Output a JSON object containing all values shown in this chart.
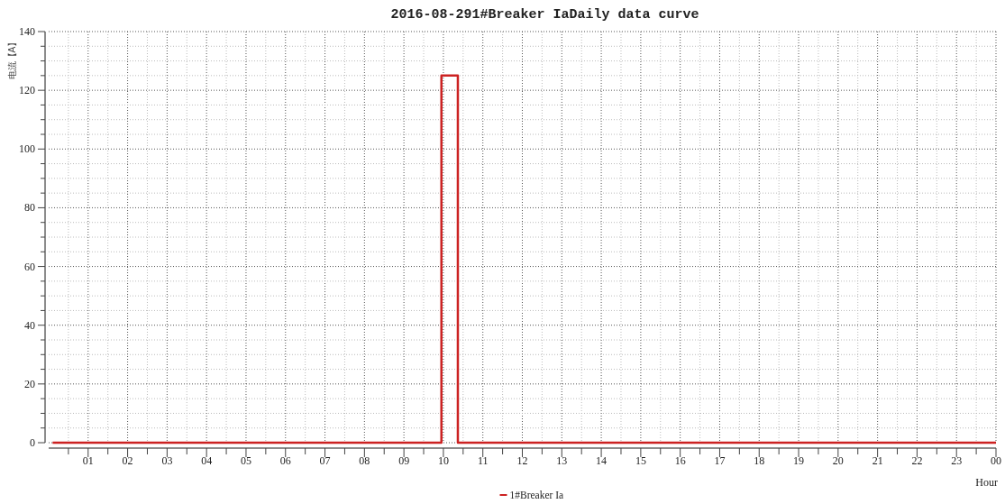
{
  "chart_data": {
    "type": "step",
    "title": "2016-08-291#Breaker IaDaily data curve",
    "xlabel": "Hour",
    "ylabel": "电流【A】",
    "series": [
      {
        "name": "1#Breaker Ia",
        "color": "#cc2222",
        "x": [
          "2016-08-29T00:06",
          "2016-08-29T09:57",
          "2016-08-29T10:22",
          "2016-08-30T00:00"
        ],
        "values": [
          0,
          125,
          0,
          0
        ]
      }
    ],
    "xlim": [
      "2016-08-29T00:00",
      "2016-08-30T00:00"
    ],
    "xticks": [
      {
        "value": "2016-08-29T00:30",
        "label": null
      },
      {
        "value": "2016-08-29T01:00",
        "label": "01"
      },
      {
        "value": "2016-08-29T01:30",
        "label": null
      },
      {
        "value": "2016-08-29T02:00",
        "label": "02"
      },
      {
        "value": "2016-08-29T02:30",
        "label": null
      },
      {
        "value": "2016-08-29T03:00",
        "label": "03"
      },
      {
        "value": "2016-08-29T03:30",
        "label": null
      },
      {
        "value": "2016-08-29T04:00",
        "label": "04"
      },
      {
        "value": "2016-08-29T04:30",
        "label": null
      },
      {
        "value": "2016-08-29T05:00",
        "label": "05"
      },
      {
        "value": "2016-08-29T05:30",
        "label": null
      },
      {
        "value": "2016-08-29T06:00",
        "label": "06"
      },
      {
        "value": "2016-08-29T06:30",
        "label": null
      },
      {
        "value": "2016-08-29T07:00",
        "label": "07"
      },
      {
        "value": "2016-08-29T07:30",
        "label": null
      },
      {
        "value": "2016-08-29T08:00",
        "label": "08"
      },
      {
        "value": "2016-08-29T08:30",
        "label": null
      },
      {
        "value": "2016-08-29T09:00",
        "label": "09"
      },
      {
        "value": "2016-08-29T09:30",
        "label": null
      },
      {
        "value": "2016-08-29T10:00",
        "label": "10"
      },
      {
        "value": "2016-08-29T10:30",
        "label": null
      },
      {
        "value": "2016-08-29T11:00",
        "label": "11"
      },
      {
        "value": "2016-08-29T11:30",
        "label": null
      },
      {
        "value": "2016-08-29T12:00",
        "label": "12"
      },
      {
        "value": "2016-08-29T12:30",
        "label": null
      },
      {
        "value": "2016-08-29T13:00",
        "label": "13"
      },
      {
        "value": "2016-08-29T13:30",
        "label": null
      },
      {
        "value": "2016-08-29T14:00",
        "label": "14"
      },
      {
        "value": "2016-08-29T14:30",
        "label": null
      },
      {
        "value": "2016-08-29T15:00",
        "label": "15"
      },
      {
        "value": "2016-08-29T15:30",
        "label": null
      },
      {
        "value": "2016-08-29T16:00",
        "label": "16"
      },
      {
        "value": "2016-08-29T16:30",
        "label": null
      },
      {
        "value": "2016-08-29T17:00",
        "label": "17"
      },
      {
        "value": "2016-08-29T17:30",
        "label": null
      },
      {
        "value": "2016-08-29T18:00",
        "label": "18"
      },
      {
        "value": "2016-08-29T18:30",
        "label": null
      },
      {
        "value": "2016-08-29T19:00",
        "label": "19"
      },
      {
        "value": "2016-08-29T19:30",
        "label": null
      },
      {
        "value": "2016-08-29T20:00",
        "label": "20"
      },
      {
        "value": "2016-08-29T20:30",
        "label": null
      },
      {
        "value": "2016-08-29T21:00",
        "label": "21"
      },
      {
        "value": "2016-08-29T21:30",
        "label": null
      },
      {
        "value": "2016-08-29T22:00",
        "label": "22"
      },
      {
        "value": "2016-08-29T22:30",
        "label": null
      },
      {
        "value": "2016-08-29T23:00",
        "label": "23"
      },
      {
        "value": "2016-08-29T23:30",
        "label": null
      },
      {
        "value": "2016-08-30T00:00",
        "label": "00"
      }
    ],
    "ylim": [
      0,
      140
    ],
    "yticks": [
      0,
      {
        "value": 5,
        "label": null
      },
      {
        "value": 10,
        "label": null
      },
      {
        "value": 15,
        "label": null
      },
      20,
      {
        "value": 25,
        "label": null
      },
      {
        "value": 30,
        "label": null
      },
      {
        "value": 35,
        "label": null
      },
      40,
      {
        "value": 45,
        "label": null
      },
      {
        "value": 50,
        "label": null
      },
      {
        "value": 55,
        "label": null
      },
      60,
      {
        "value": 65,
        "label": null
      },
      {
        "value": 70,
        "label": null
      },
      {
        "value": 75,
        "label": null
      },
      80,
      {
        "value": 85,
        "label": null
      },
      {
        "value": 90,
        "label": null
      },
      {
        "value": 95,
        "label": null
      },
      100,
      {
        "value": 105,
        "label": null
      },
      {
        "value": 110,
        "label": null
      },
      {
        "value": 115,
        "label": null
      },
      120,
      {
        "value": 125,
        "label": null
      },
      {
        "value": 130,
        "label": null
      },
      {
        "value": 135,
        "label": null
      },
      140
    ],
    "grid": true,
    "legend": "bottom",
    "line_style": "solid",
    "marker": "none"
  }
}
